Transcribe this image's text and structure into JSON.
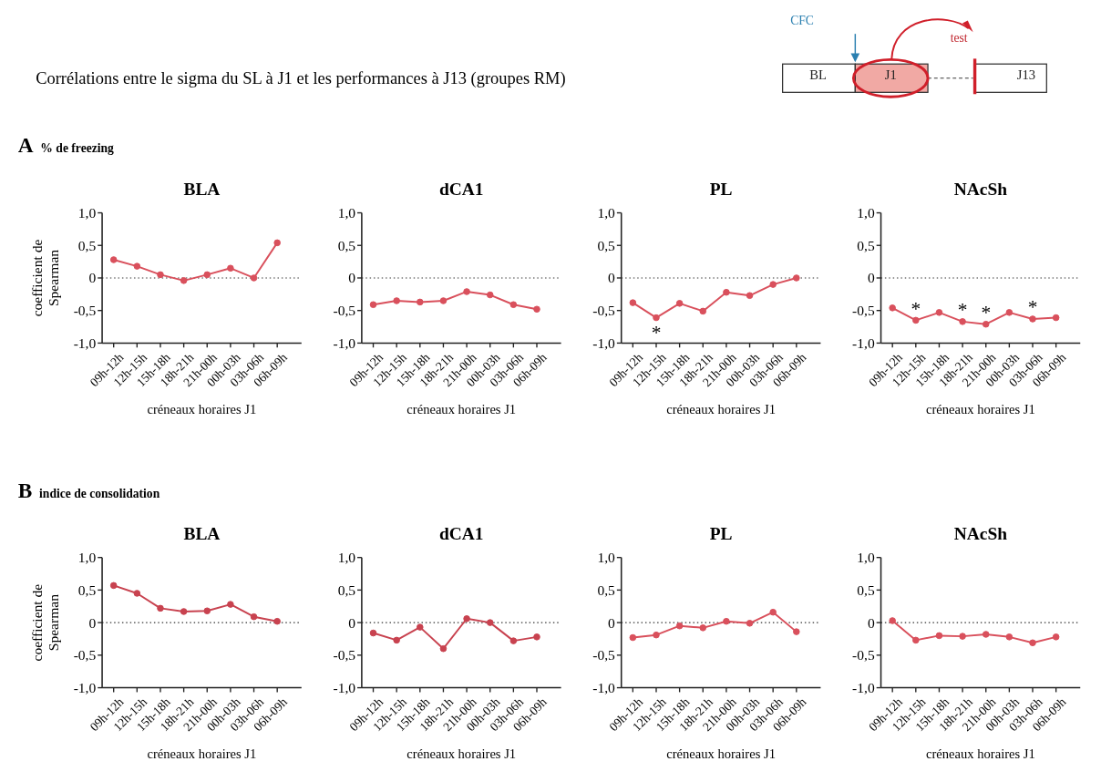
{
  "chart_data": [
    {
      "type": "other",
      "title": "Corrélations entre le sigma du SL à J1 et les performances à J13 (groupes RM)",
      "annotations": [
        "BL",
        "J1",
        "J13",
        "CFC",
        "test"
      ]
    },
    {
      "type": "line",
      "subtitle": "A % de freezing",
      "title": "BLA",
      "ylabel": "coefficient de Spearman",
      "xlabel": "créneaux horaires J1",
      "categories": [
        "09h-12h",
        "12h-15h",
        "15h-18h",
        "18h-21h",
        "21h-00h",
        "00h-03h",
        "03h-06h",
        "06h-09h"
      ],
      "ylim": [
        -1,
        1
      ],
      "yticks": [
        {
          "value": -1,
          "label": "-1,0"
        },
        {
          "value": -0.5,
          "label": "-0,5"
        },
        {
          "value": 0,
          "label": "0"
        },
        {
          "value": 0.5,
          "label": "0,5"
        },
        {
          "value": 1,
          "label": "1,0"
        }
      ],
      "marker": "circle",
      "line_style": "solid",
      "grid": false,
      "ref_lines": [
        {
          "axis": "y",
          "value": 0,
          "color": "#333333",
          "line_style": "dotted"
        }
      ],
      "series": [
        {
          "color": "#d9505c",
          "values": [
            0.28,
            0.18,
            0.05,
            -0.04,
            0.05,
            0.15,
            0,
            0.54
          ]
        }
      ]
    },
    {
      "type": "line",
      "title": "dCA1",
      "xlabel": "créneaux horaires J1",
      "categories": [
        "09h-12h",
        "12h-15h",
        "15h-18h",
        "18h-21h",
        "21h-00h",
        "00h-03h",
        "03h-06h",
        "06h-09h"
      ],
      "ylim": [
        -1,
        1
      ],
      "yticks": [
        {
          "value": -1,
          "label": "-1,0"
        },
        {
          "value": -0.5,
          "label": "-0,5"
        },
        {
          "value": 0,
          "label": "0"
        },
        {
          "value": 0.5,
          "label": "0,5"
        },
        {
          "value": 1,
          "label": "1,0"
        }
      ],
      "marker": "circle",
      "line_style": "solid",
      "grid": false,
      "ref_lines": [
        {
          "axis": "y",
          "value": 0,
          "color": "#333333",
          "line_style": "dotted"
        }
      ],
      "series": [
        {
          "color": "#d9505c",
          "values": [
            -0.41,
            -0.35,
            -0.37,
            -0.35,
            -0.21,
            -0.26,
            -0.41,
            -0.48
          ]
        }
      ]
    },
    {
      "type": "line",
      "title": "PL",
      "xlabel": "créneaux horaires J1",
      "categories": [
        "09h-12h",
        "12h-15h",
        "15h-18h",
        "18h-21h",
        "21h-00h",
        "00h-03h",
        "03h-06h",
        "06h-09h"
      ],
      "ylim": [
        -1,
        1
      ],
      "yticks": [
        {
          "value": -1,
          "label": "-1,0"
        },
        {
          "value": -0.5,
          "label": "-0,5"
        },
        {
          "value": 0,
          "label": "0"
        },
        {
          "value": 0.5,
          "label": "0,5"
        },
        {
          "value": 1,
          "label": "1,0"
        }
      ],
      "marker": "circle",
      "line_style": "solid",
      "grid": false,
      "ref_lines": [
        {
          "axis": "y",
          "value": 0,
          "color": "#333333",
          "line_style": "dotted"
        }
      ],
      "annotations": [
        {
          "text": "*",
          "x": "12h-15h",
          "y": -0.61
        }
      ],
      "series": [
        {
          "color": "#d9505c",
          "values": [
            -0.38,
            -0.61,
            -0.39,
            -0.51,
            -0.22,
            -0.27,
            -0.1,
            0
          ]
        }
      ]
    },
    {
      "type": "line",
      "title": "NAcSh",
      "xlabel": "créneaux horaires J1",
      "categories": [
        "09h-12h",
        "12h-15h",
        "15h-18h",
        "18h-21h",
        "21h-00h",
        "00h-03h",
        "03h-06h",
        "06h-09h"
      ],
      "ylim": [
        -1,
        1
      ],
      "yticks": [
        {
          "value": -1,
          "label": "-1,0"
        },
        {
          "value": -0.5,
          "label": "-0,5"
        },
        {
          "value": 0,
          "label": "0"
        },
        {
          "value": 0.5,
          "label": "0,5"
        },
        {
          "value": 1,
          "label": "1,0"
        }
      ],
      "marker": "circle",
      "line_style": "solid",
      "grid": false,
      "ref_lines": [
        {
          "axis": "y",
          "value": 0,
          "color": "#333333",
          "line_style": "dotted"
        }
      ],
      "annotations": [
        {
          "text": "*",
          "x": "12h-15h",
          "y": -0.65
        },
        {
          "text": "*",
          "x": "18h-21h",
          "y": -0.67
        },
        {
          "text": "*",
          "x": "21h-00h",
          "y": -0.71
        },
        {
          "text": "*",
          "x": "03h-06h",
          "y": -0.63
        }
      ],
      "series": [
        {
          "color": "#d9505c",
          "values": [
            -0.46,
            -0.65,
            -0.53,
            -0.67,
            -0.71,
            -0.53,
            -0.63,
            -0.61
          ]
        }
      ]
    },
    {
      "type": "line",
      "subtitle": "B indice de consolidation",
      "title": "BLA",
      "ylabel": "coefficient de Spearman",
      "xlabel": "créneaux horaires J1",
      "categories": [
        "09h-12h",
        "12h-15h",
        "15h-18h",
        "18h-21h",
        "21h-00h",
        "00h-03h",
        "03h-06h",
        "06h-09h"
      ],
      "ylim": [
        -1,
        1
      ],
      "yticks": [
        {
          "value": -1,
          "label": "-1,0"
        },
        {
          "value": -0.5,
          "label": "-0,5"
        },
        {
          "value": 0,
          "label": "0"
        },
        {
          "value": 0.5,
          "label": "0,5"
        },
        {
          "value": 1,
          "label": "1,0"
        }
      ],
      "marker": "circle",
      "line_style": "solid",
      "grid": false,
      "ref_lines": [
        {
          "axis": "y",
          "value": 0,
          "color": "#333333",
          "line_style": "dotted"
        }
      ],
      "series": [
        {
          "color": "#c8424f",
          "values": [
            0.57,
            0.45,
            0.22,
            0.17,
            0.18,
            0.28,
            0.09,
            0.02
          ]
        }
      ]
    },
    {
      "type": "line",
      "title": "dCA1",
      "xlabel": "créneaux horaires J1",
      "categories": [
        "09h-12h",
        "12h-15h",
        "15h-18h",
        "18h-21h",
        "21h-00h",
        "00h-03h",
        "03h-06h",
        "06h-09h"
      ],
      "ylim": [
        -1,
        1
      ],
      "yticks": [
        {
          "value": -1,
          "label": "-1,0"
        },
        {
          "value": -0.5,
          "label": "-0,5"
        },
        {
          "value": 0,
          "label": "0"
        },
        {
          "value": 0.5,
          "label": "0,5"
        },
        {
          "value": 1,
          "label": "1,0"
        }
      ],
      "marker": "circle",
      "line_style": "solid",
      "grid": false,
      "ref_lines": [
        {
          "axis": "y",
          "value": 0,
          "color": "#333333",
          "line_style": "dotted"
        }
      ],
      "series": [
        {
          "color": "#c8424f",
          "values": [
            -0.16,
            -0.27,
            -0.07,
            -0.4,
            0.06,
            0,
            -0.28,
            -0.22
          ]
        }
      ]
    },
    {
      "type": "line",
      "title": "PL",
      "xlabel": "créneaux horaires J1",
      "categories": [
        "09h-12h",
        "12h-15h",
        "15h-18h",
        "18h-21h",
        "21h-00h",
        "00h-03h",
        "03h-06h",
        "06h-09h"
      ],
      "ylim": [
        -1,
        1
      ],
      "yticks": [
        {
          "value": -1,
          "label": "-1,0"
        },
        {
          "value": -0.5,
          "label": "-0,5"
        },
        {
          "value": 0,
          "label": "0"
        },
        {
          "value": 0.5,
          "label": "0,5"
        },
        {
          "value": 1,
          "label": "1,0"
        }
      ],
      "marker": "circle",
      "line_style": "solid",
      "grid": false,
      "ref_lines": [
        {
          "axis": "y",
          "value": 0,
          "color": "#333333",
          "line_style": "dotted"
        }
      ],
      "series": [
        {
          "color": "#d9505c",
          "values": [
            -0.23,
            -0.19,
            -0.05,
            -0.08,
            0.02,
            -0.01,
            0.16,
            -0.14
          ]
        }
      ]
    },
    {
      "type": "line",
      "title": "NAcSh",
      "xlabel": "créneaux horaires J1",
      "categories": [
        "09h-12h",
        "12h-15h",
        "15h-18h",
        "18h-21h",
        "21h-00h",
        "00h-03h",
        "03h-06h",
        "06h-09h"
      ],
      "ylim": [
        -1,
        1
      ],
      "yticks": [
        {
          "value": -1,
          "label": "-1,0"
        },
        {
          "value": -0.5,
          "label": "-0,5"
        },
        {
          "value": 0,
          "label": "0"
        },
        {
          "value": 0.5,
          "label": "0,5"
        },
        {
          "value": 1,
          "label": "1,0"
        }
      ],
      "marker": "circle",
      "line_style": "solid",
      "grid": false,
      "ref_lines": [
        {
          "axis": "y",
          "value": 0,
          "color": "#333333",
          "line_style": "dotted"
        }
      ],
      "series": [
        {
          "color": "#d9505c",
          "values": [
            0.03,
            -0.27,
            -0.2,
            -0.21,
            -0.18,
            -0.22,
            -0.31,
            -0.22
          ]
        }
      ]
    }
  ]
}
